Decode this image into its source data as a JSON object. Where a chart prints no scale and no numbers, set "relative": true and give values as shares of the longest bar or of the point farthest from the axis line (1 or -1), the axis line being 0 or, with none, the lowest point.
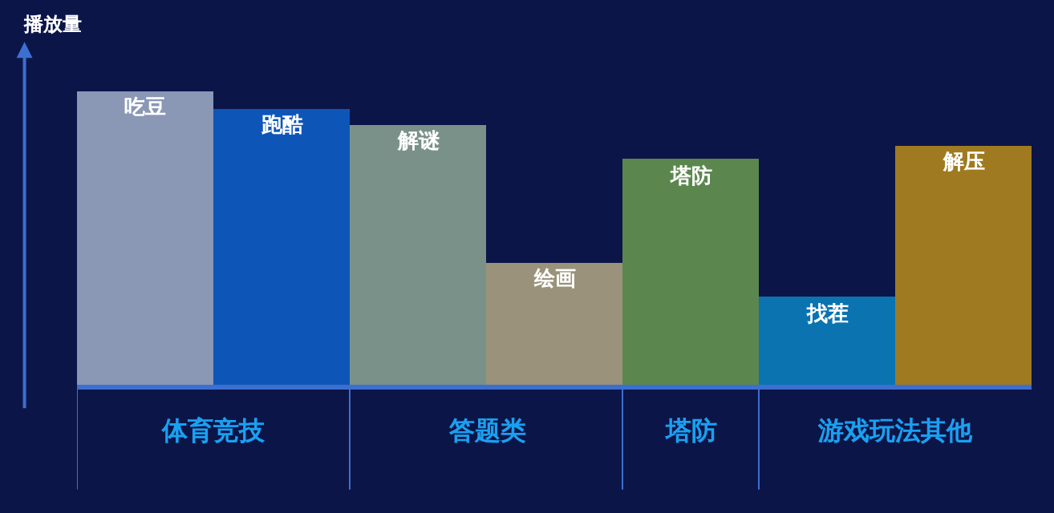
{
  "chart_data": {
    "type": "bar",
    "relative": true,
    "ylabel": "播放量",
    "categories": [
      "吃豆",
      "跑酷",
      "解谜",
      "绘画",
      "塔防",
      "找茬",
      "解压"
    ],
    "values": [
      1,
      0.94,
      0.884,
      0.412,
      0.769,
      0.302,
      0.814
    ],
    "colors": [
      "#8a97b5",
      "#0d56b8",
      "#7a918a",
      "#9a927a",
      "#5b874f",
      "#0a73b0",
      "#a07a20"
    ],
    "annotations": [
      "体育竞技",
      "答题类",
      "塔防",
      "游戏玩法其他"
    ],
    "grid": false,
    "legend": false
  }
}
